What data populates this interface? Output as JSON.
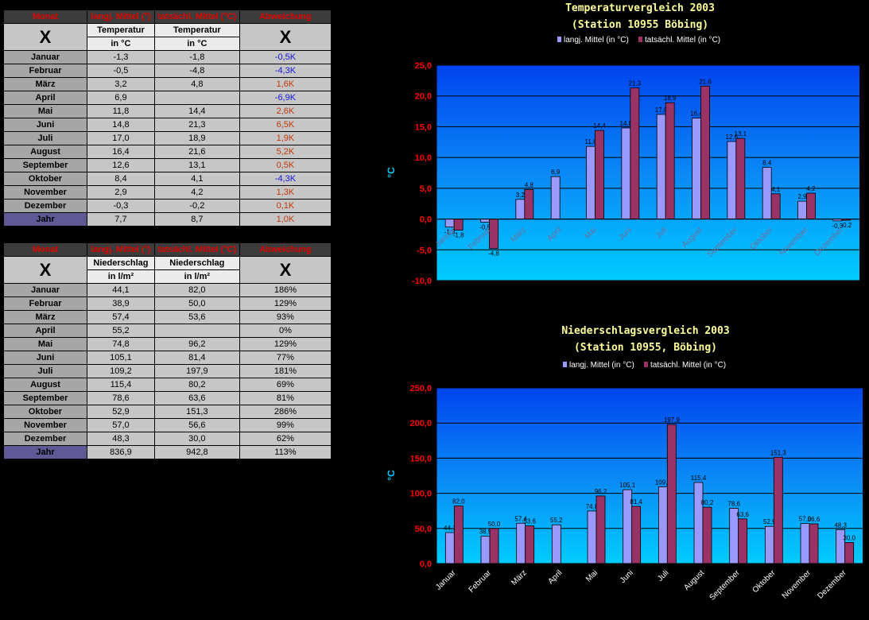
{
  "temp_table": {
    "headers": [
      "Monat",
      "langj. Mittel (°)",
      "tatsächl. Mittel (°C)",
      "Abweichung"
    ],
    "x_mark": "X",
    "sub_label": "Temperatur",
    "unit": "in °C",
    "rows": [
      {
        "month": "Januar",
        "longterm": "-1,3",
        "actual": "-1,8",
        "dev": "-0,5K",
        "sign": "neg"
      },
      {
        "month": "Februar",
        "longterm": "-0,5",
        "actual": "-4,8",
        "dev": "-4,3K",
        "sign": "neg"
      },
      {
        "month": "März",
        "longterm": "3,2",
        "actual": "4,8",
        "dev": "1,6K",
        "sign": "pos"
      },
      {
        "month": "April",
        "longterm": "6,9",
        "actual": "",
        "dev": "-6,9K",
        "sign": "neg"
      },
      {
        "month": "Mai",
        "longterm": "11,8",
        "actual": "14,4",
        "dev": "2,6K",
        "sign": "pos"
      },
      {
        "month": "Juni",
        "longterm": "14,8",
        "actual": "21,3",
        "dev": "6,5K",
        "sign": "pos"
      },
      {
        "month": "Juli",
        "longterm": "17,0",
        "actual": "18,9",
        "dev": "1,9K",
        "sign": "pos"
      },
      {
        "month": "August",
        "longterm": "16,4",
        "actual": "21,6",
        "dev": "5,2K",
        "sign": "pos"
      },
      {
        "month": "September",
        "longterm": "12,6",
        "actual": "13,1",
        "dev": "0,5K",
        "sign": "pos"
      },
      {
        "month": "Oktober",
        "longterm": "8,4",
        "actual": "4,1",
        "dev": "-4,3K",
        "sign": "neg"
      },
      {
        "month": "November",
        "longterm": "2,9",
        "actual": "4,2",
        "dev": "1,3K",
        "sign": "pos"
      },
      {
        "month": "Dezember",
        "longterm": "-0,3",
        "actual": "-0,2",
        "dev": "0,1K",
        "sign": "pos"
      }
    ],
    "year": {
      "label": "Jahr",
      "longterm": "7,7",
      "actual": "8,7",
      "dev": "1,0K",
      "sign": "pos"
    }
  },
  "precip_table": {
    "headers": [
      "Monat",
      "langj. Mittel (°)",
      "tatsächl. Mittel (°C)",
      "Abweichung"
    ],
    "x_mark": "X",
    "sub_label": "Niederschlag",
    "unit": "in l/m²",
    "rows": [
      {
        "month": "Januar",
        "longterm": "44,1",
        "actual": "82,0",
        "dev": "186%"
      },
      {
        "month": "Februar",
        "longterm": "38,9",
        "actual": "50,0",
        "dev": "129%"
      },
      {
        "month": "März",
        "longterm": "57,4",
        "actual": "53,6",
        "dev": "93%"
      },
      {
        "month": "April",
        "longterm": "55,2",
        "actual": "",
        "dev": "0%"
      },
      {
        "month": "Mai",
        "longterm": "74,8",
        "actual": "96,2",
        "dev": "129%"
      },
      {
        "month": "Juni",
        "longterm": "105,1",
        "actual": "81,4",
        "dev": "77%"
      },
      {
        "month": "Juli",
        "longterm": "109,2",
        "actual": "197,9",
        "dev": "181%"
      },
      {
        "month": "August",
        "longterm": "115,4",
        "actual": "80,2",
        "dev": "69%"
      },
      {
        "month": "September",
        "longterm": "78,6",
        "actual": "63,6",
        "dev": "81%"
      },
      {
        "month": "Oktober",
        "longterm": "52,9",
        "actual": "151,3",
        "dev": "286%"
      },
      {
        "month": "November",
        "longterm": "57,0",
        "actual": "56,6",
        "dev": "99%"
      },
      {
        "month": "Dezember",
        "longterm": "48,3",
        "actual": "30,0",
        "dev": "62%"
      }
    ],
    "year": {
      "label": "Jahr",
      "longterm": "836,9",
      "actual": "942,8",
      "dev": "113%"
    }
  },
  "colors": {
    "longterm": "#9999ff",
    "actual": "#993366",
    "pos": "#c0390c",
    "neg": "#1515e0",
    "axis": "#ff0000",
    "ylabel": "#00ccff"
  },
  "chart_data": [
    {
      "type": "bar",
      "title": "Temperaturvergleich 2003",
      "subtitle": "(Station 10955 Böbing)",
      "ylabel": "°C",
      "xlabel": "",
      "ylim": [
        -10,
        25
      ],
      "yticks": [
        "-10,0",
        "-5,0",
        "0,0",
        "5,0",
        "10,0",
        "15,0",
        "20,0",
        "25,0"
      ],
      "grid": true,
      "legend": "top",
      "categories": [
        "Januar",
        "Februar",
        "März",
        "April",
        "Mai",
        "Juni",
        "Juli",
        "August",
        "September",
        "Oktober",
        "November",
        "Dezember"
      ],
      "series": [
        {
          "name": "langj. Mittel (in °C)",
          "values": [
            -1.3,
            -0.5,
            3.2,
            6.9,
            11.8,
            14.8,
            17.0,
            16.4,
            12.6,
            8.4,
            2.9,
            -0.3
          ],
          "labels": [
            "-1,3",
            "-0,5",
            "3,2",
            "6,9",
            "11,8",
            "14,8",
            "17,0",
            "16,4",
            "12,6",
            "8,4",
            "2,9",
            "-0,3"
          ]
        },
        {
          "name": "tatsächl. Mittel (in °C)",
          "values": [
            -1.8,
            -4.8,
            4.8,
            null,
            14.4,
            21.3,
            18.9,
            21.6,
            13.1,
            4.1,
            4.2,
            -0.2
          ],
          "labels": [
            "-1,8",
            "-4,8",
            "4,8",
            "",
            "14,4",
            "21,3",
            "18,9",
            "21,6",
            "13,1",
            "4,1",
            "4,2",
            "-0,2"
          ]
        }
      ]
    },
    {
      "type": "bar",
      "title": "Niederschlagsvergleich 2003",
      "subtitle": "(Station 10955, Böbing)",
      "ylabel": "°C",
      "xlabel": "",
      "ylim": [
        0,
        250
      ],
      "yticks": [
        "0,0",
        "50,0",
        "100,0",
        "150,0",
        "200,0",
        "250,0"
      ],
      "grid": true,
      "legend": "top",
      "categories": [
        "Januar",
        "Februar",
        "März",
        "April",
        "Mai",
        "Juni",
        "Juli",
        "August",
        "September",
        "Oktober",
        "November",
        "Dezember"
      ],
      "series": [
        {
          "name": "langj. Mittel (in °C)",
          "values": [
            44.1,
            38.9,
            57.4,
            55.2,
            74.8,
            105.1,
            109.2,
            115.4,
            78.6,
            52.9,
            57.0,
            48.3
          ],
          "labels": [
            "44,1",
            "38,9",
            "57,4",
            "55,2",
            "74,8",
            "105,1",
            "109,2",
            "115,4",
            "78,6",
            "52,9",
            "57,0",
            "48,3"
          ]
        },
        {
          "name": "tatsächl. Mittel (in °C)",
          "values": [
            82.0,
            50.0,
            53.6,
            null,
            96.2,
            81.4,
            197.9,
            80.2,
            63.6,
            151.3,
            56.6,
            30.0
          ],
          "labels": [
            "82,0",
            "50,0",
            "53,6",
            "",
            "96,2",
            "81,4",
            "197,9",
            "80,2",
            "63,6",
            "151,3",
            "56,6",
            "30,0"
          ]
        }
      ]
    }
  ]
}
